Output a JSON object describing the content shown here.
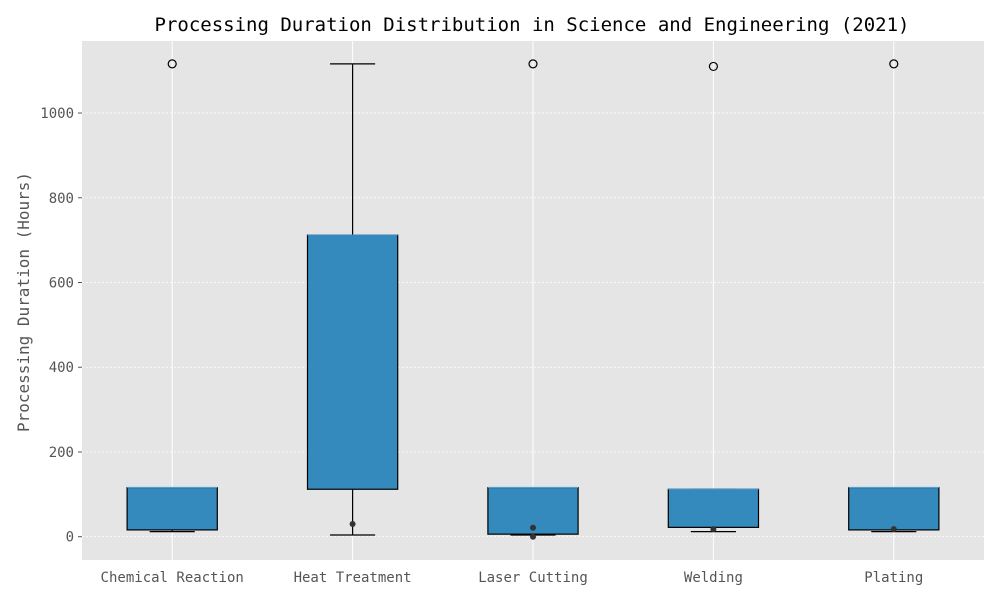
{
  "chart_data": {
    "type": "box",
    "title": "Processing Duration Distribution in Science and Engineering (2021)",
    "xlabel": "",
    "ylabel": "Processing Duration (Hours)",
    "ylim": [
      -55,
      1170
    ],
    "yticks": [
      0,
      200,
      400,
      600,
      800,
      1000
    ],
    "grid": true,
    "colors": {
      "plot_background": "#e5e5e5",
      "grid": "#ffffff",
      "box_fill": "#348abd",
      "box_edge": "#000000",
      "median": "#4d9fd6",
      "mean_point": "#333333"
    },
    "categories": [
      "Chemical Reaction",
      "Heat Treatment",
      "Laser Cutting",
      "Welding",
      "Plating"
    ],
    "boxes": [
      {
        "category": "Chemical Reaction",
        "whisker_low": 12,
        "q1": 16,
        "median": 116,
        "q3": 116,
        "whisker_high": 116,
        "outliers": [
          1116
        ],
        "mean_points": []
      },
      {
        "category": "Heat Treatment",
        "whisker_low": 4,
        "q1": 112,
        "median": 712,
        "q3": 712,
        "whisker_high": 1116,
        "outliers": [],
        "mean_points": [
          30
        ]
      },
      {
        "category": "Laser Cutting",
        "whisker_low": 4,
        "q1": 6,
        "median": 116,
        "q3": 116,
        "whisker_high": 116,
        "outliers": [
          1116
        ],
        "mean_points": [
          21,
          0
        ]
      },
      {
        "category": "Welding",
        "whisker_low": 12,
        "q1": 22,
        "median": 112,
        "q3": 112,
        "whisker_high": 112,
        "outliers": [
          1110
        ],
        "mean_points": [
          18
        ]
      },
      {
        "category": "Plating",
        "whisker_low": 12,
        "q1": 16,
        "median": 116,
        "q3": 116,
        "whisker_high": 116,
        "outliers": [
          1116
        ],
        "mean_points": [
          18
        ]
      }
    ]
  }
}
